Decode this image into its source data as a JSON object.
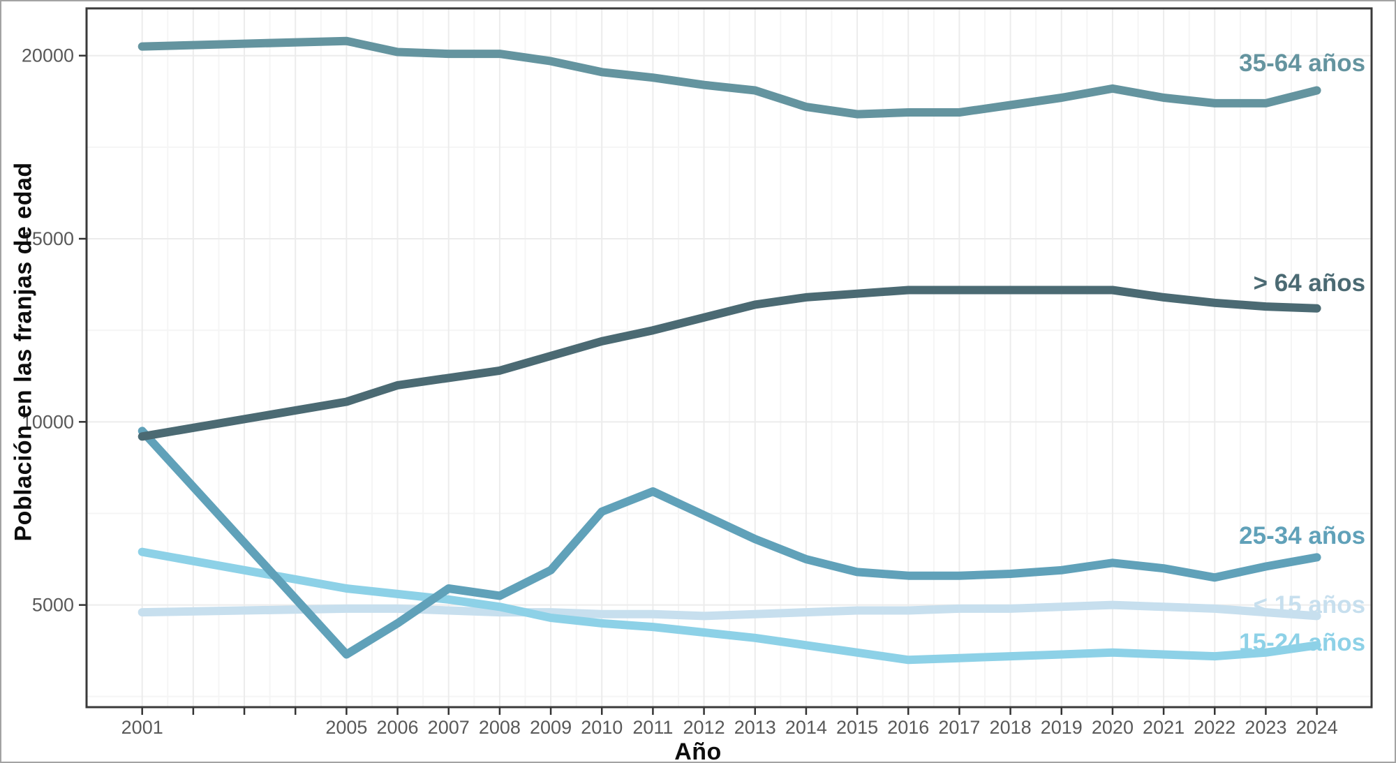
{
  "chart_data": {
    "type": "line",
    "title": "",
    "xlabel": "Año",
    "ylabel": "Población en las franjas de edad",
    "x": [
      2001,
      2005,
      2006,
      2007,
      2008,
      2009,
      2010,
      2011,
      2012,
      2013,
      2014,
      2015,
      2016,
      2017,
      2018,
      2019,
      2020,
      2021,
      2022,
      2023,
      2024
    ],
    "x_axis": {
      "labeled_ticks": [
        "2001",
        "2005",
        "2006",
        "2007",
        "2008",
        "2009",
        "2010",
        "2011",
        "2012",
        "2013",
        "2014",
        "2015",
        "2016",
        "2017",
        "2018",
        "2019",
        "2020",
        "2021",
        "2022",
        "2023",
        "2024"
      ],
      "labeled_tick_years": [
        2001,
        2005,
        2006,
        2007,
        2008,
        2009,
        2010,
        2011,
        2012,
        2013,
        2014,
        2015,
        2016,
        2017,
        2018,
        2019,
        2020,
        2021,
        2022,
        2023,
        2024
      ],
      "unlabeled_tick_years": [
        2002,
        2003,
        2004
      ],
      "xlim": [
        1999.9,
        2025.1
      ]
    },
    "y_axis": {
      "ticks": [
        5000,
        10000,
        15000,
        20000
      ],
      "tick_labels": [
        "5000",
        "10000",
        "15000",
        "20000"
      ],
      "minor_gridlines": [
        2500,
        7500,
        12500,
        17500
      ],
      "ylim": [
        2200,
        21300
      ]
    },
    "grid": "major and minor, very light gray on white panel",
    "legend_position": "inline labels at right edge of lines",
    "series": [
      {
        "name": "35-64 años",
        "slug": "35-64-anos",
        "color": "#64949f",
        "values": [
          20250,
          20400,
          20100,
          20050,
          20050,
          19850,
          19550,
          19400,
          19200,
          19050,
          18600,
          18400,
          18450,
          18450,
          18650,
          18850,
          19100,
          18850,
          18700,
          18700,
          19050
        ]
      },
      {
        "name": "> 64 años",
        "slug": "gt-64-anos",
        "color": "#4b6a73",
        "values": [
          9600,
          10550,
          11000,
          11200,
          11400,
          11800,
          12200,
          12500,
          12850,
          13200,
          13400,
          13500,
          13600,
          13600,
          13600,
          13600,
          13600,
          13400,
          13250,
          13150,
          13100
        ]
      },
      {
        "name": "25-34 años",
        "slug": "25-34-anos",
        "color": "#60a1b9",
        "values": [
          9750,
          3650,
          4500,
          5450,
          5250,
          5950,
          7550,
          8100,
          7450,
          6800,
          6250,
          5900,
          5800,
          5800,
          5850,
          5950,
          6150,
          6000,
          5750,
          6050,
          6300
        ]
      },
      {
        "name": "< 15 años",
        "slug": "lt-15-anos",
        "color": "#c7dfee",
        "values": [
          4800,
          4900,
          4900,
          4850,
          4800,
          4800,
          4750,
          4750,
          4700,
          4750,
          4800,
          4850,
          4850,
          4900,
          4900,
          4950,
          5000,
          4950,
          4900,
          4800,
          4700
        ]
      },
      {
        "name": "15-24 años",
        "slug": "15-24-anos",
        "color": "#8dd1e7",
        "values": [
          6450,
          5450,
          5300,
          5150,
          4950,
          4650,
          4500,
          4400,
          4250,
          4100,
          3900,
          3700,
          3500,
          3550,
          3600,
          3650,
          3700,
          3650,
          3600,
          3700,
          3900
        ]
      }
    ],
    "series_labels": [
      {
        "text": "35-64 años",
        "color": "#64949f",
        "x_year": 2024.95,
        "y_value": 19800,
        "anchor": "end"
      },
      {
        "text": "> 64 años",
        "color": "#4b6a73",
        "x_year": 2024.95,
        "y_value": 13800,
        "anchor": "end"
      },
      {
        "text": "25-34 años",
        "color": "#60a1b9",
        "x_year": 2024.95,
        "y_value": 6900,
        "anchor": "end"
      },
      {
        "text": "< 15 años",
        "color": "#c7dfee",
        "x_year": 2024.95,
        "y_value": 5010,
        "anchor": "end"
      },
      {
        "text": "15-24 años",
        "color": "#8dd1e7",
        "x_year": 2024.95,
        "y_value": 3980,
        "anchor": "end"
      }
    ]
  },
  "colors": {
    "background": "#ffffff",
    "outer_border": "#a3a3a3",
    "panel_border": "#3a3a3a",
    "tick_mark": "#333333",
    "tick_label": "#595959",
    "axis_title": "#0d0d0d",
    "grid_major": "#ececec",
    "grid_minor": "#f5f5f5"
  }
}
